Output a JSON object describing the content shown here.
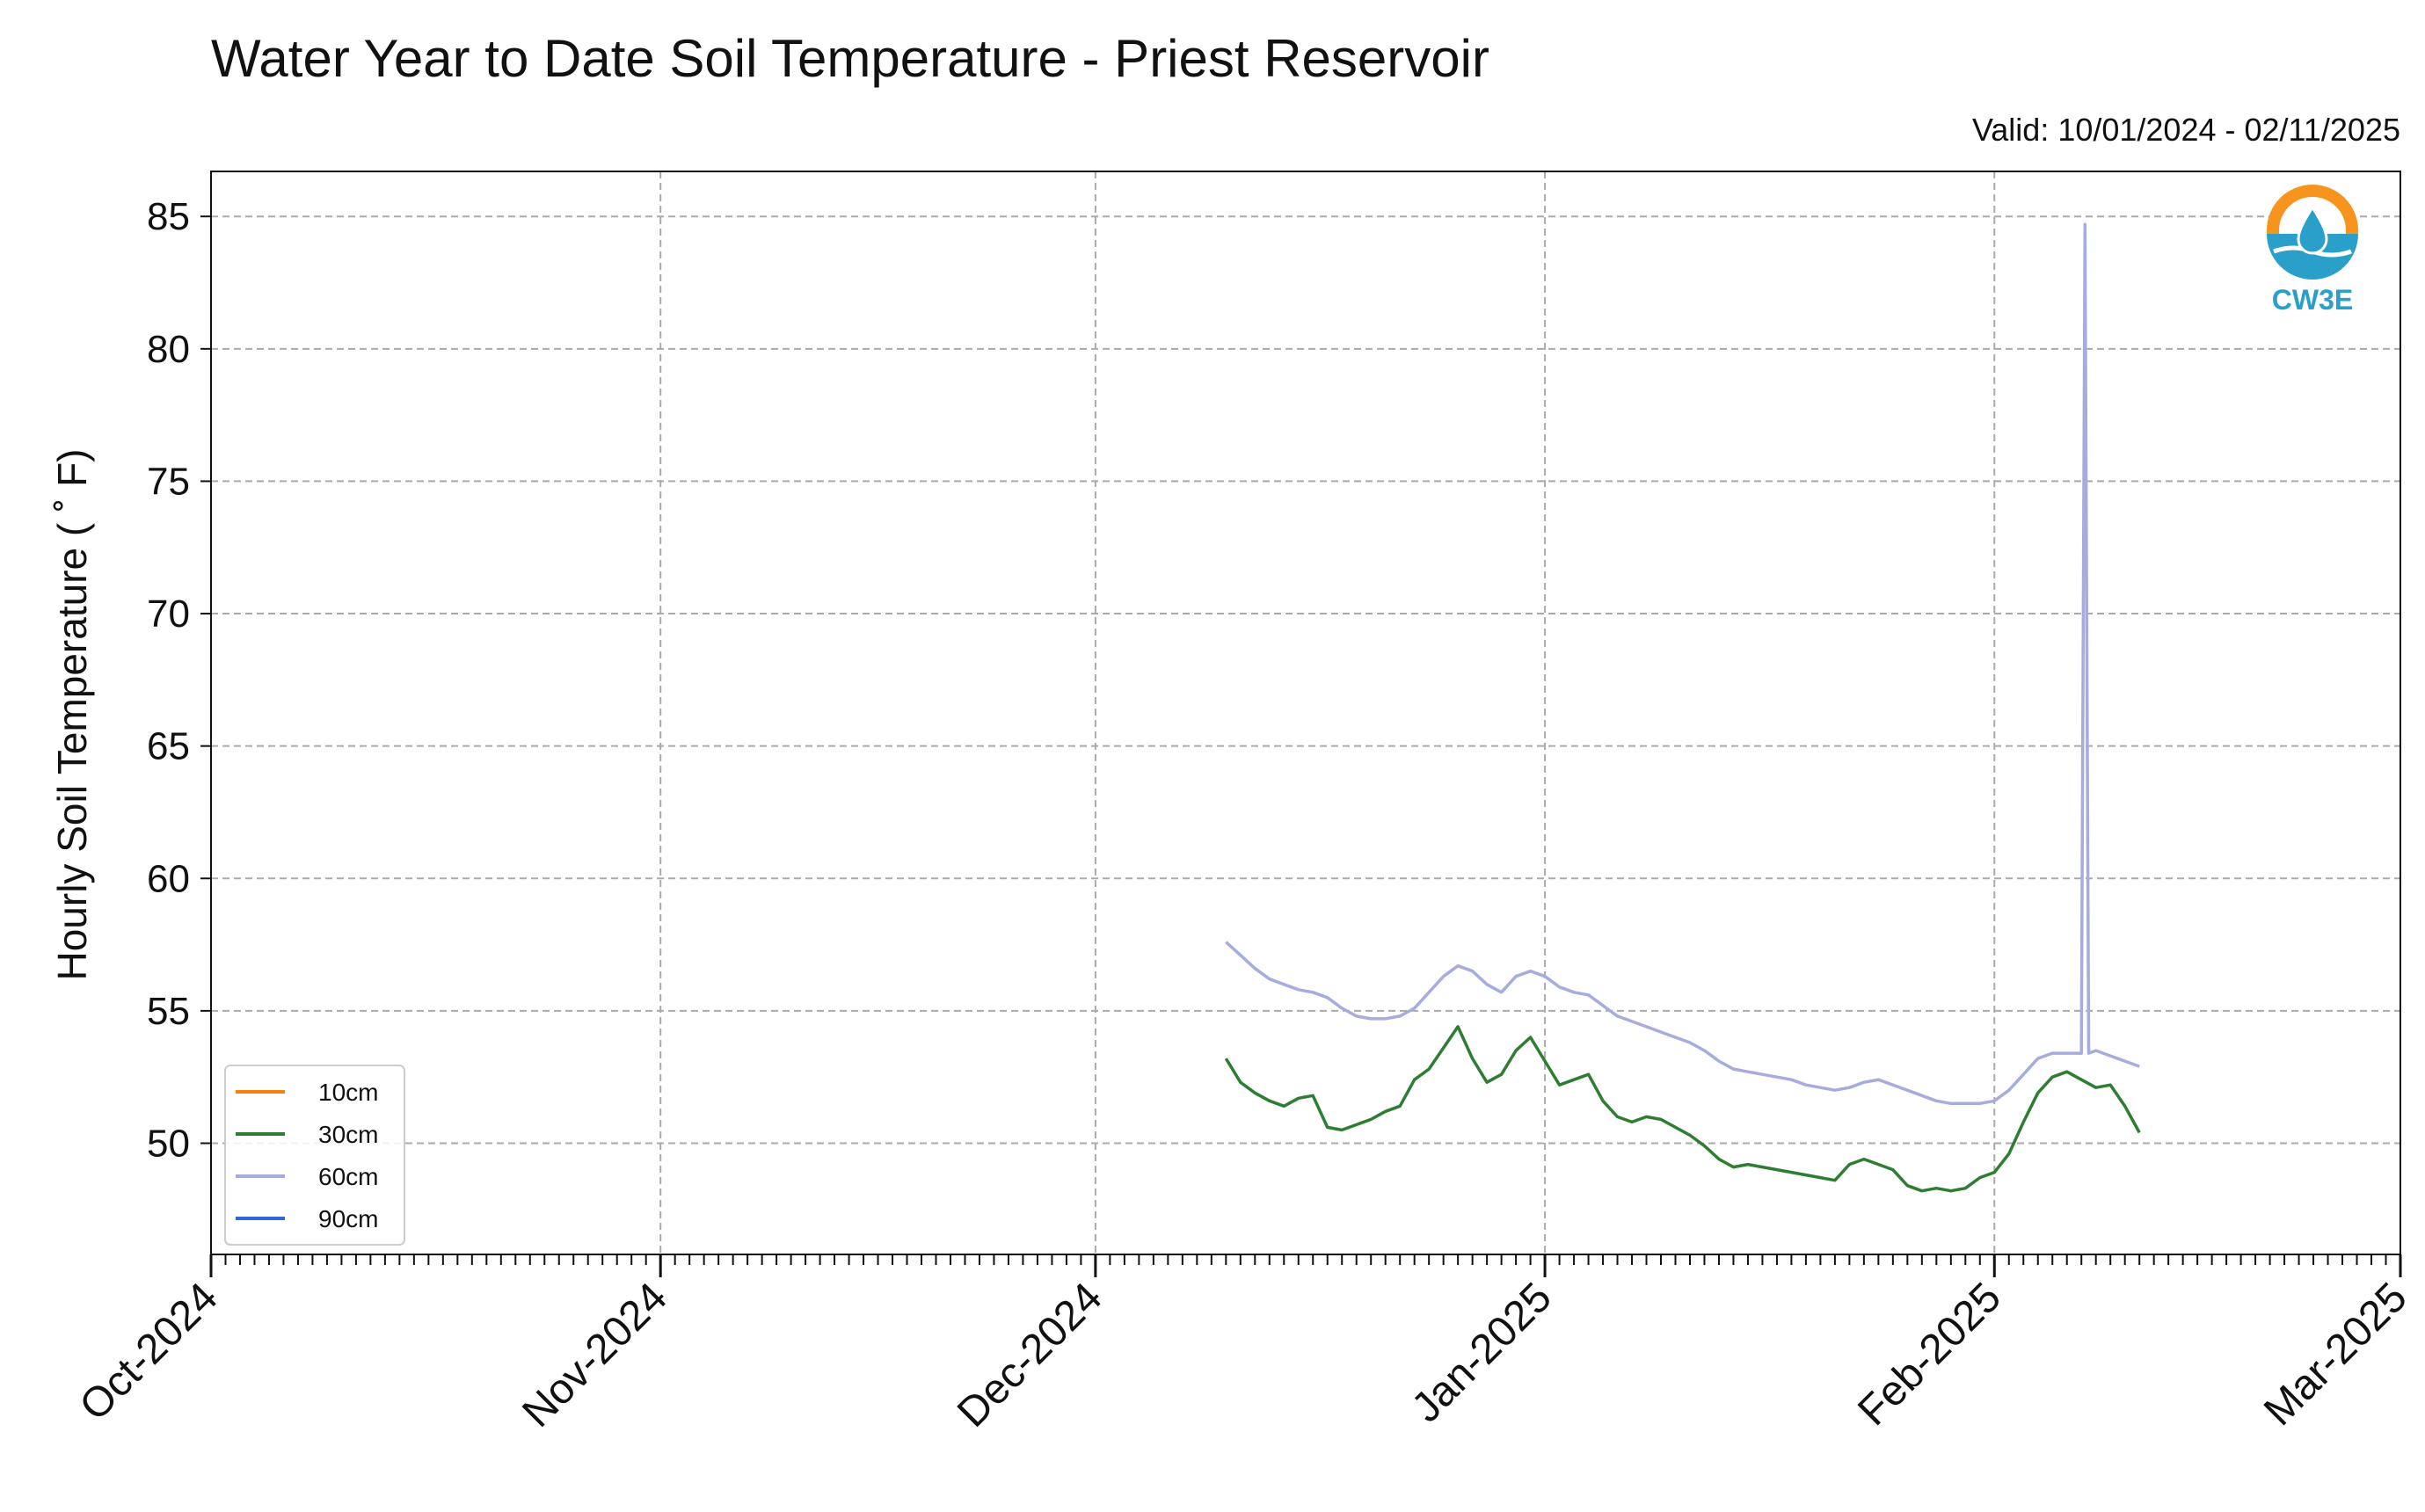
{
  "chart_data": {
    "type": "line",
    "title": "Water Year to Date Soil Temperature - Priest Reservoir",
    "subtitle": "Valid: 10/01/2024 - 02/11/2025",
    "xlabel": "",
    "ylabel": "Hourly Soil Temperature ($^\\circ$F)",
    "ylabel_display": "Hourly Soil Temperature ( ˚ F)",
    "xlim": [
      "2024-10-01",
      "2025-03-01"
    ],
    "ylim": [
      45.8,
      86.7
    ],
    "y_ticks": [
      50,
      55,
      60,
      65,
      70,
      75,
      80,
      85
    ],
    "x_ticks": [
      {
        "date": "2024-10-01",
        "label": "Oct-2024"
      },
      {
        "date": "2024-11-01",
        "label": "Nov-2024"
      },
      {
        "date": "2024-12-01",
        "label": "Dec-2024"
      },
      {
        "date": "2025-01-01",
        "label": "Jan-2025"
      },
      {
        "date": "2025-02-01",
        "label": "Feb-2025"
      },
      {
        "date": "2025-03-01",
        "label": "Mar-2025"
      }
    ],
    "grid": true,
    "legend_position": "lower-left",
    "series": [
      {
        "name": "10cm",
        "color": "#ff7f0e",
        "points": []
      },
      {
        "name": "30cm",
        "color": "#2e7d32",
        "points": [
          [
            "2024-12-10",
            53.2
          ],
          [
            "2024-12-11",
            52.3
          ],
          [
            "2024-12-12",
            51.9
          ],
          [
            "2024-12-13",
            51.6
          ],
          [
            "2024-12-14",
            51.4
          ],
          [
            "2024-12-15",
            51.7
          ],
          [
            "2024-12-16",
            51.8
          ],
          [
            "2024-12-17",
            50.6
          ],
          [
            "2024-12-18",
            50.5
          ],
          [
            "2024-12-19",
            50.7
          ],
          [
            "2024-12-20",
            50.9
          ],
          [
            "2024-12-21",
            51.2
          ],
          [
            "2024-12-22",
            51.4
          ],
          [
            "2024-12-23",
            52.4
          ],
          [
            "2024-12-24",
            52.8
          ],
          [
            "2024-12-25",
            53.6
          ],
          [
            "2024-12-26",
            54.4
          ],
          [
            "2024-12-27",
            53.2
          ],
          [
            "2024-12-28",
            52.3
          ],
          [
            "2024-12-29",
            52.6
          ],
          [
            "2024-12-30",
            53.5
          ],
          [
            "2024-12-31",
            54.0
          ],
          [
            "2025-01-01",
            53.1
          ],
          [
            "2025-01-02",
            52.2
          ],
          [
            "2025-01-03",
            52.4
          ],
          [
            "2025-01-04",
            52.6
          ],
          [
            "2025-01-05",
            51.6
          ],
          [
            "2025-01-06",
            51.0
          ],
          [
            "2025-01-07",
            50.8
          ],
          [
            "2025-01-08",
            51.0
          ],
          [
            "2025-01-09",
            50.9
          ],
          [
            "2025-01-10",
            50.6
          ],
          [
            "2025-01-11",
            50.3
          ],
          [
            "2025-01-12",
            49.9
          ],
          [
            "2025-01-13",
            49.4
          ],
          [
            "2025-01-14",
            49.1
          ],
          [
            "2025-01-15",
            49.2
          ],
          [
            "2025-01-16",
            49.1
          ],
          [
            "2025-01-17",
            49.0
          ],
          [
            "2025-01-18",
            48.9
          ],
          [
            "2025-01-19",
            48.8
          ],
          [
            "2025-01-20",
            48.7
          ],
          [
            "2025-01-21",
            48.6
          ],
          [
            "2025-01-22",
            49.2
          ],
          [
            "2025-01-23",
            49.4
          ],
          [
            "2025-01-24",
            49.2
          ],
          [
            "2025-01-25",
            49.0
          ],
          [
            "2025-01-26",
            48.4
          ],
          [
            "2025-01-27",
            48.2
          ],
          [
            "2025-01-28",
            48.3
          ],
          [
            "2025-01-29",
            48.2
          ],
          [
            "2025-01-30",
            48.3
          ],
          [
            "2025-01-31",
            48.7
          ],
          [
            "2025-02-01",
            48.9
          ],
          [
            "2025-02-02",
            49.6
          ],
          [
            "2025-02-03",
            50.8
          ],
          [
            "2025-02-04",
            51.9
          ],
          [
            "2025-02-05",
            52.5
          ],
          [
            "2025-02-06",
            52.7
          ],
          [
            "2025-02-07",
            52.4
          ],
          [
            "2025-02-08",
            52.1
          ],
          [
            "2025-02-09",
            52.2
          ],
          [
            "2025-02-10",
            51.4
          ],
          [
            "2025-02-11",
            50.4
          ]
        ]
      },
      {
        "name": "60cm",
        "color": "#a6acdd",
        "points": [
          [
            "2024-12-10",
            57.6
          ],
          [
            "2024-12-11",
            57.1
          ],
          [
            "2024-12-12",
            56.6
          ],
          [
            "2024-12-13",
            56.2
          ],
          [
            "2024-12-14",
            56.0
          ],
          [
            "2024-12-15",
            55.8
          ],
          [
            "2024-12-16",
            55.7
          ],
          [
            "2024-12-17",
            55.5
          ],
          [
            "2024-12-18",
            55.1
          ],
          [
            "2024-12-19",
            54.8
          ],
          [
            "2024-12-20",
            54.7
          ],
          [
            "2024-12-21",
            54.7
          ],
          [
            "2024-12-22",
            54.8
          ],
          [
            "2024-12-23",
            55.1
          ],
          [
            "2024-12-24",
            55.7
          ],
          [
            "2024-12-25",
            56.3
          ],
          [
            "2024-12-26",
            56.7
          ],
          [
            "2024-12-27",
            56.5
          ],
          [
            "2024-12-28",
            56.0
          ],
          [
            "2024-12-29",
            55.7
          ],
          [
            "2024-12-30",
            56.3
          ],
          [
            "2024-12-31",
            56.5
          ],
          [
            "2025-01-01",
            56.3
          ],
          [
            "2025-01-02",
            55.9
          ],
          [
            "2025-01-03",
            55.7
          ],
          [
            "2025-01-04",
            55.6
          ],
          [
            "2025-01-05",
            55.2
          ],
          [
            "2025-01-06",
            54.8
          ],
          [
            "2025-01-07",
            54.6
          ],
          [
            "2025-01-08",
            54.4
          ],
          [
            "2025-01-09",
            54.2
          ],
          [
            "2025-01-10",
            54.0
          ],
          [
            "2025-01-11",
            53.8
          ],
          [
            "2025-01-12",
            53.5
          ],
          [
            "2025-01-13",
            53.1
          ],
          [
            "2025-01-14",
            52.8
          ],
          [
            "2025-01-15",
            52.7
          ],
          [
            "2025-01-16",
            52.6
          ],
          [
            "2025-01-17",
            52.5
          ],
          [
            "2025-01-18",
            52.4
          ],
          [
            "2025-01-19",
            52.2
          ],
          [
            "2025-01-20",
            52.1
          ],
          [
            "2025-01-21",
            52.0
          ],
          [
            "2025-01-22",
            52.1
          ],
          [
            "2025-01-23",
            52.3
          ],
          [
            "2025-01-24",
            52.4
          ],
          [
            "2025-01-25",
            52.2
          ],
          [
            "2025-01-26",
            52.0
          ],
          [
            "2025-01-27",
            51.8
          ],
          [
            "2025-01-28",
            51.6
          ],
          [
            "2025-01-29",
            51.5
          ],
          [
            "2025-01-30",
            51.5
          ],
          [
            "2025-01-31",
            51.5
          ],
          [
            "2025-02-01",
            51.6
          ],
          [
            "2025-02-02",
            52.0
          ],
          [
            "2025-02-03",
            52.6
          ],
          [
            "2025-02-04",
            53.2
          ],
          [
            "2025-02-05",
            53.4
          ],
          [
            "2025-02-06",
            53.4
          ],
          [
            "2025-02-07",
            53.4
          ],
          [
            "2025-02-07T06:00",
            84.7
          ],
          [
            "2025-02-07T12:00",
            53.4
          ],
          [
            "2025-02-08",
            53.5
          ],
          [
            "2025-02-09",
            53.3
          ],
          [
            "2025-02-10",
            53.1
          ],
          [
            "2025-02-11",
            52.9
          ]
        ]
      },
      {
        "name": "90cm",
        "color": "#3366dd",
        "points": []
      }
    ]
  },
  "logo": {
    "text": "CW3E",
    "color": "#2a9fc9",
    "accent": "#f7941d"
  }
}
